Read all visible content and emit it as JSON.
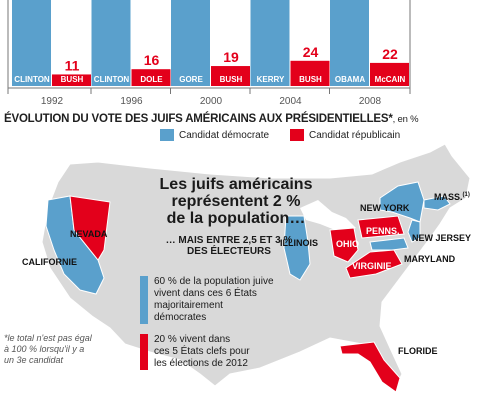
{
  "chart_data": {
    "type": "bar",
    "years": [
      "1992",
      "1996",
      "2000",
      "2004",
      "2008"
    ],
    "series": [
      {
        "name": "Candidat démocrate",
        "color": "#5aa0cc",
        "labels": [
          "CLINTON",
          "CLINTON",
          "GORE",
          "KERRY",
          "OBAMA"
        ]
      },
      {
        "name": "Candidat républicain",
        "color": "#e3001b",
        "labels": [
          "BUSH",
          "DOLE",
          "BUSH",
          "BUSH",
          "McCAIN"
        ],
        "values": [
          11,
          16,
          19,
          24,
          22
        ]
      }
    ],
    "value_unit": "%"
  },
  "title": "ÉVOLUTION DU VOTE DES JUIFS AMÉRICAINS AUX PRÉSIDENTIELLES*",
  "title_suffix": ", en %",
  "legend": {
    "dem": "Candidat démocrate",
    "rep": "Candidat républicain"
  },
  "colors": {
    "dem": "#5aa0cc",
    "rep": "#e3001b",
    "land": "#d9d9d9",
    "border": "#ffffff"
  },
  "map": {
    "headline_1": "Les juifs américains",
    "headline_2": "représentent 2 %",
    "headline_3": "de la population…",
    "subhead_1": "… MAIS ENTRE 2,5 ET 3 %",
    "subhead_2": "DES ÉLECTEURS",
    "box_dem_1": "60 % de la population juive",
    "box_dem_2": "vivent dans ces 6 États",
    "box_dem_3": "majoritairement démocrates",
    "box_rep_1": "20 % vivent dans",
    "box_rep_2": "ces 5 États clefs pour",
    "box_rep_3": "les élections de 2012",
    "footnote_1": "*le total n'est pas égal",
    "footnote_2": "à 100 % lorsqu'il y a",
    "footnote_3": "un 3e candidat",
    "states": {
      "california": "CALIFORNIE",
      "nevada": "NEVADA",
      "illinois": "ILLINOIS",
      "ohio": "OHIO",
      "penns": "PENNS.",
      "new_york": "NEW YORK",
      "mass": "MASS.",
      "new_jersey": "NEW JERSEY",
      "maryland": "MARYLAND",
      "virginie": "VIRGINIE",
      "floride": "FLORIDE"
    },
    "footnote_marker": "(1)"
  }
}
